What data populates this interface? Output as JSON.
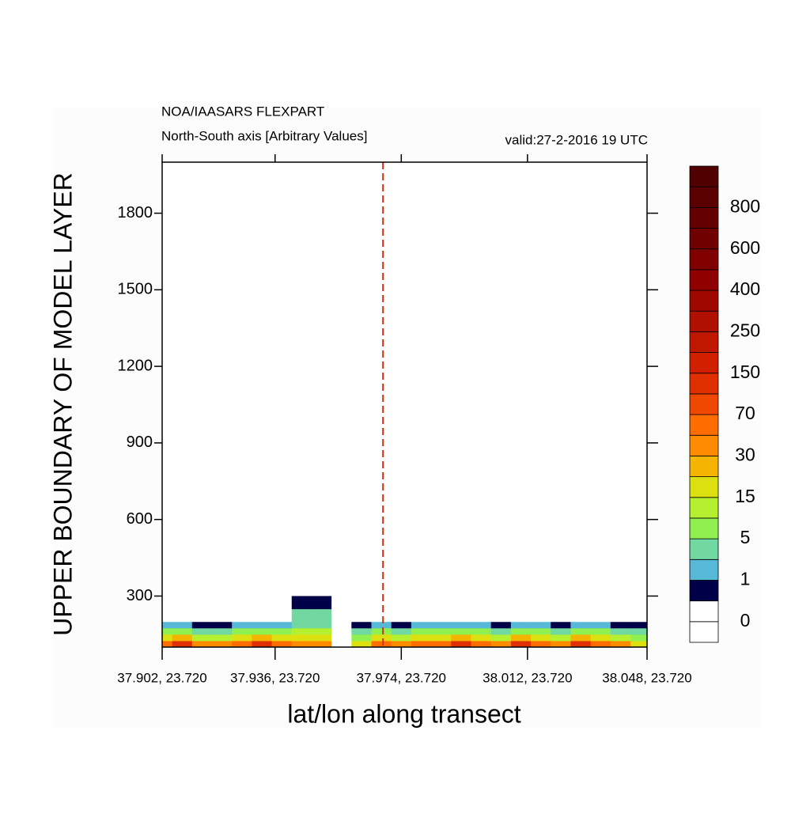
{
  "chart_data": {
    "type": "contour",
    "title": "NOA/IAASARS FLEXPART",
    "subtitle": "North-South axis [Arbitrary Values]",
    "valid_label": "valid:27-2-2016 19 UTC",
    "xlabel": "lat/lon along transect",
    "ylabel": "UPPER BOUNDARY OF MODEL LAYER",
    "xlim": [
      37.902,
      38.048
    ],
    "xticks": [
      {
        "value": 37.902,
        "label": "37.902, 23.720"
      },
      {
        "value": 37.936,
        "label": "37.936, 23.720"
      },
      {
        "value": 37.974,
        "label": "37.974, 23.720"
      },
      {
        "value": 38.012,
        "label": "38.012, 23.720"
      },
      {
        "value": 38.048,
        "label": "38.048, 23.720"
      }
    ],
    "ylim": [
      100,
      2000
    ],
    "yticks": [
      300,
      600,
      900,
      1200,
      1500,
      1800
    ],
    "x": [
      37.902,
      37.908,
      37.914,
      37.92,
      37.926,
      37.932,
      37.938,
      37.944,
      37.95,
      37.956,
      37.962,
      37.968,
      37.974,
      37.98,
      37.986,
      37.992,
      37.998,
      38.004,
      38.01,
      38.016,
      38.022,
      38.028,
      38.034,
      38.04,
      38.046
    ],
    "y": [
      125,
      150,
      175,
      200,
      250,
      300
    ],
    "z": [
      [
        60,
        120,
        40,
        30,
        60,
        120,
        60,
        40,
        40,
        0,
        20,
        60,
        40,
        60,
        60,
        120,
        60,
        40,
        120,
        60,
        40,
        120,
        60,
        40,
        20
      ],
      [
        15,
        25,
        12,
        10,
        15,
        25,
        15,
        20,
        20,
        0,
        7,
        15,
        12,
        15,
        15,
        25,
        15,
        12,
        25,
        15,
        12,
        25,
        15,
        12,
        7
      ],
      [
        5,
        7,
        4,
        3,
        5,
        7,
        5,
        10,
        10,
        0,
        3,
        5,
        4,
        5,
        5,
        7,
        5,
        4,
        7,
        5,
        4,
        7,
        5,
        4,
        3
      ],
      [
        1.5,
        2,
        0.7,
        0.7,
        1.5,
        2,
        1.5,
        4,
        4,
        0,
        0.7,
        1.5,
        0.7,
        1.5,
        1.5,
        2,
        1.5,
        0.7,
        2,
        1.5,
        0.7,
        2,
        1.5,
        0.7,
        0.7
      ],
      [
        0,
        0,
        0,
        0,
        0,
        0,
        0,
        4,
        4,
        0,
        0,
        0,
        0,
        0,
        0,
        0,
        0,
        0,
        0,
        0,
        0,
        0,
        0,
        0,
        0
      ],
      [
        0,
        0,
        0,
        0,
        0,
        0,
        0,
        0.7,
        0.7,
        0,
        0,
        0,
        0,
        0,
        0,
        0,
        0,
        0,
        0,
        0,
        0,
        0,
        0,
        0,
        0
      ]
    ],
    "marker_line": 37.9685,
    "marker_color": "#d03010",
    "levels": [
      0,
      1,
      5,
      15,
      30,
      70,
      150,
      250,
      400,
      600,
      800
    ],
    "colors": [
      "#ffffff",
      "#ffffff",
      "#000048",
      "#58b8d8",
      "#70d8a0",
      "#90f050",
      "#b4f030",
      "#dce010",
      "#f4b400",
      "#ff8c00",
      "#ff6c00",
      "#f04800",
      "#e03000",
      "#d02000",
      "#c01800",
      "#b01000",
      "#a00800",
      "#900000",
      "#800000",
      "#700000",
      "#640000",
      "#5a0000",
      "#500000"
    ]
  }
}
